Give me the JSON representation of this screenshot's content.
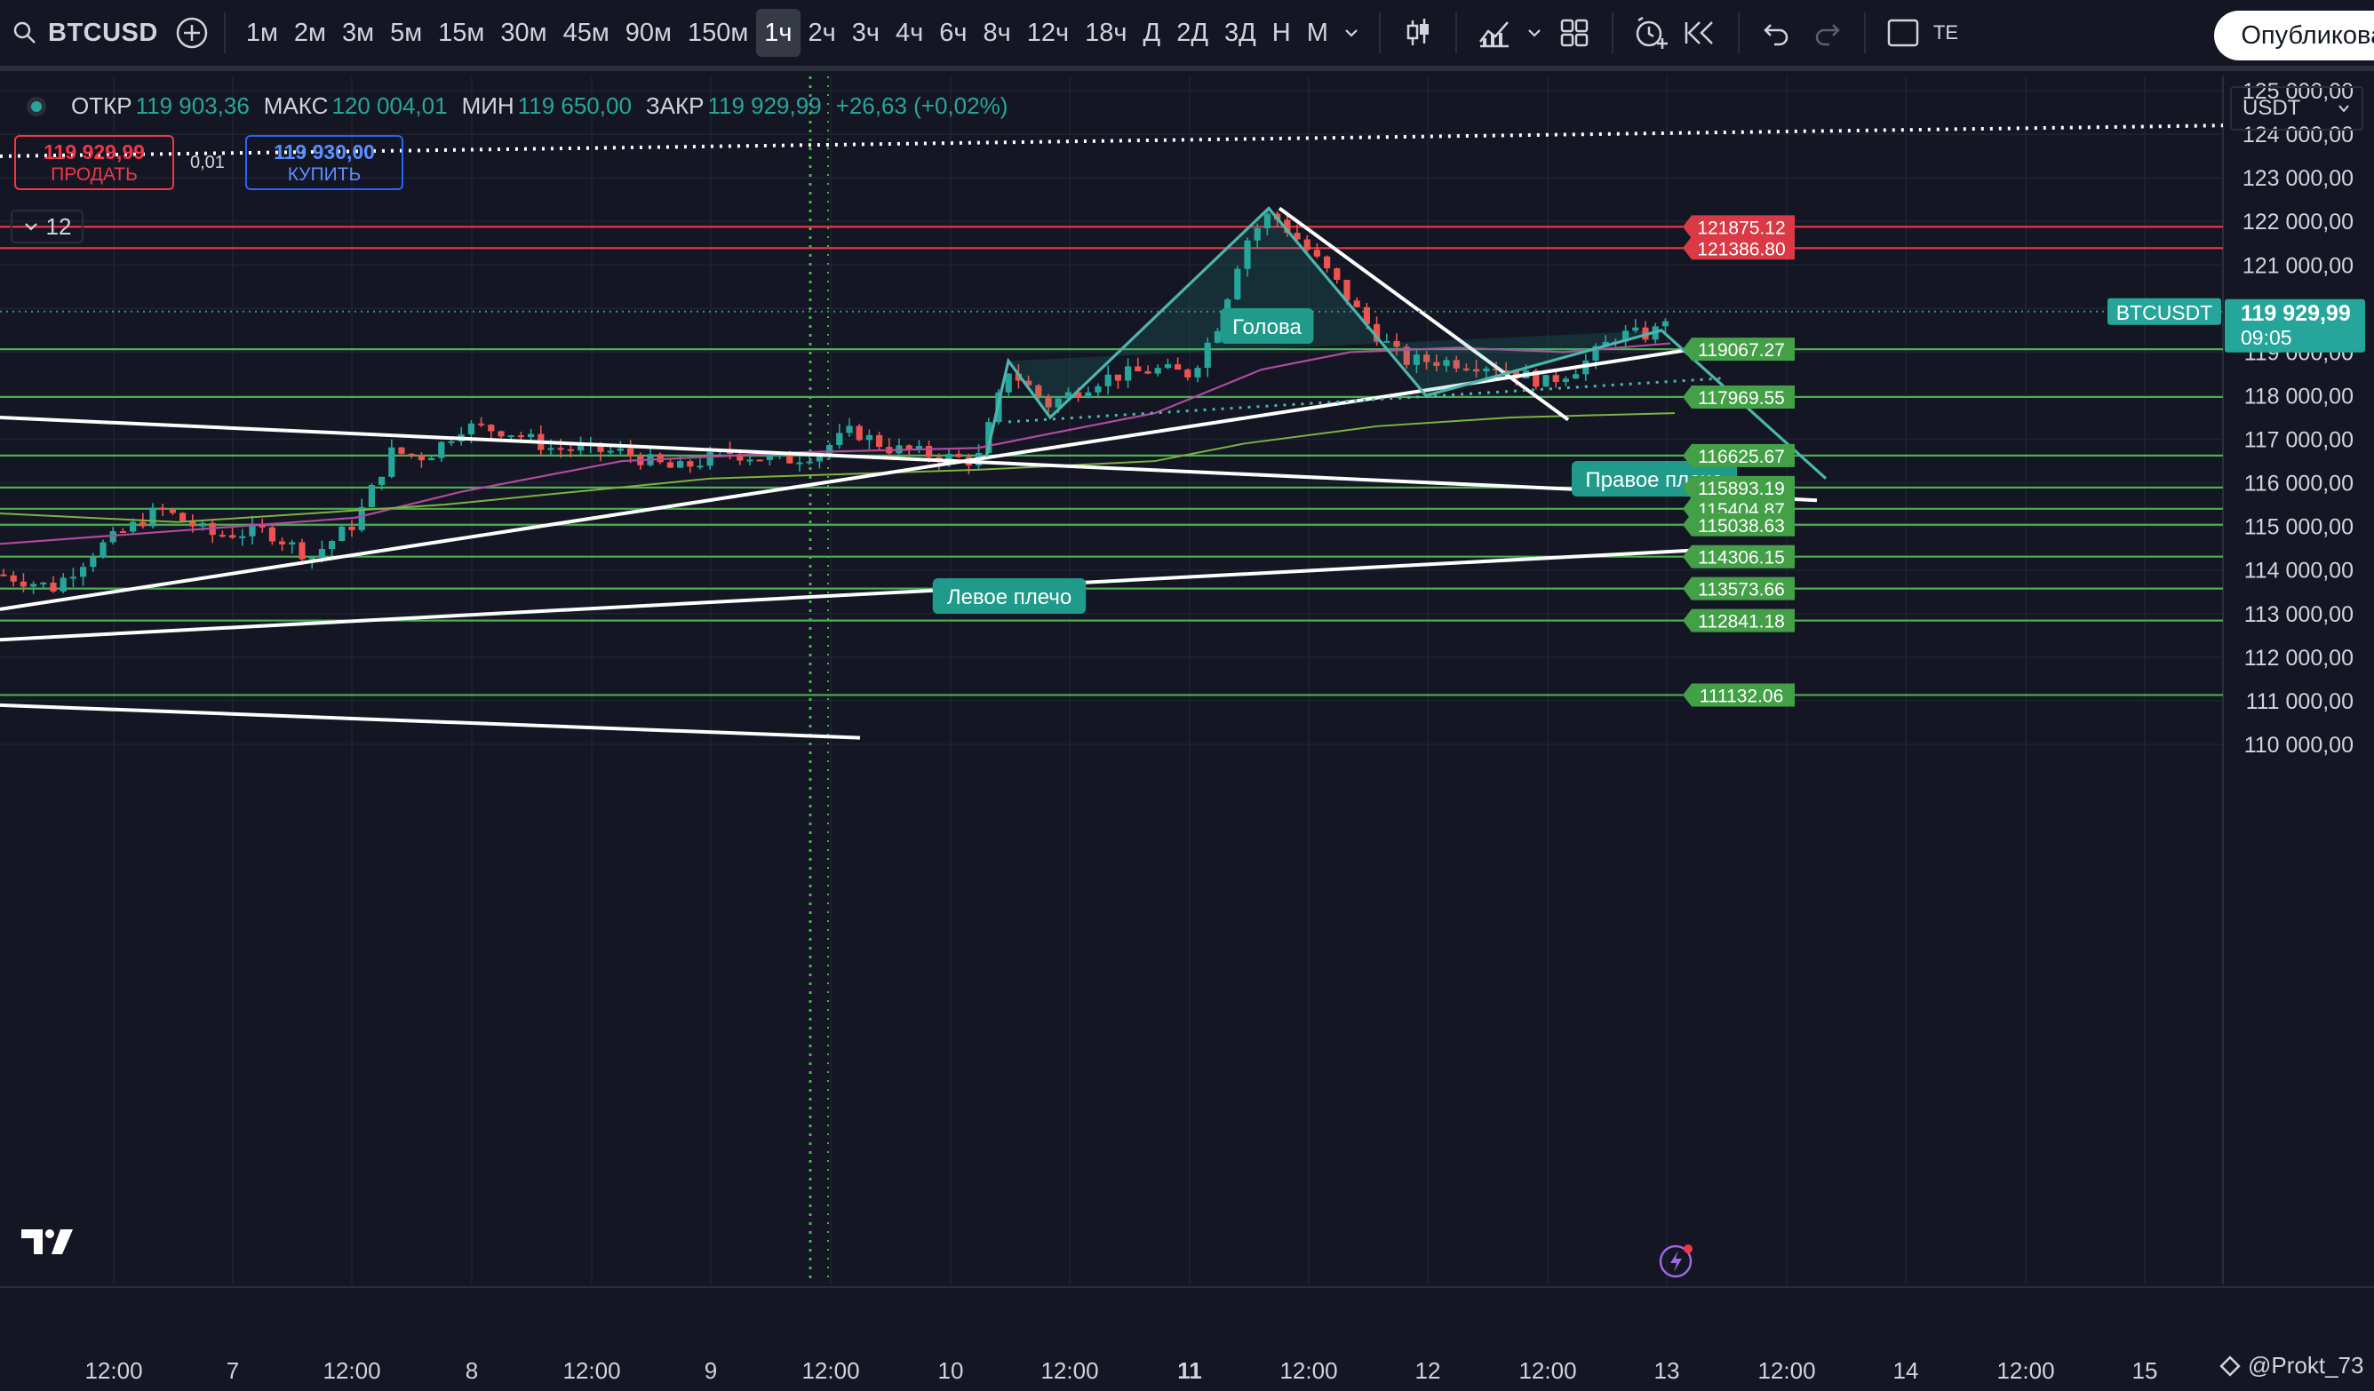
{
  "toolbar": {
    "symbol": "BTCUSD",
    "timeframes": [
      "1м",
      "2м",
      "3м",
      "5м",
      "15м",
      "30м",
      "45м",
      "90м",
      "150м",
      "1ч",
      "2ч",
      "3ч",
      "4ч",
      "6ч",
      "8ч",
      "12ч",
      "18ч",
      "Д",
      "2Д",
      "3Д",
      "Н",
      "М"
    ],
    "active_timeframe": "1ч",
    "extra_label": "ТЕ",
    "publish_label": "Опубликовать",
    "icons": [
      "search-icon",
      "add-symbol-icon",
      "chevron-down-icon",
      "candles-icon",
      "indicators-icon",
      "layout-icon",
      "alert-icon",
      "replay-icon",
      "undo-icon",
      "redo-icon",
      "fullscreen-icon"
    ]
  },
  "legend": {
    "open_label": "ОТКР",
    "open": "119 903,36",
    "high_label": "МАКС",
    "high": "120 004,01",
    "low_label": "МИН",
    "low": "119 650,00",
    "close_label": "ЗАКР",
    "close": "119 929,99",
    "change": "+26,63 (+0,02%)"
  },
  "trade": {
    "sell_price": "119 929,99",
    "sell_label": "ПРОДАТЬ",
    "spread": "0,01",
    "buy_price": "119 930,00",
    "buy_label": "КУПИТЬ"
  },
  "indicators_count": "12",
  "currency": "USDT",
  "price_axis": [
    "125 000,00",
    "124 000,00",
    "123 000,00",
    "122 000,00",
    "121 000,00",
    "119 000,00",
    "118 000,00",
    "117 000,00",
    "116 000,00",
    "115 000,00",
    "114 000,00",
    "113 000,00",
    "112 000,00",
    "111 000,00",
    "110 000,00"
  ],
  "price_axis_values": [
    125000,
    124000,
    123000,
    122000,
    121000,
    119000,
    118000,
    117000,
    116000,
    115000,
    114000,
    113000,
    112000,
    111000,
    110000
  ],
  "current_price": {
    "symbol": "BTCUSDT",
    "price": "119 929,99",
    "countdown": "09:05",
    "value": 119929.99
  },
  "level_lines": [
    {
      "label": "121875.12",
      "value": 121875.12,
      "color": "#f23645"
    },
    {
      "label": "121386.80",
      "value": 121386.8,
      "color": "#f23645"
    },
    {
      "label": "119067.27",
      "value": 119067.27,
      "color": "#4caf50"
    },
    {
      "label": "117969.55",
      "value": 117969.55,
      "color": "#4caf50"
    },
    {
      "label": "116625.67",
      "value": 116625.67,
      "color": "#4caf50"
    },
    {
      "label": "115893.19",
      "value": 115893.19,
      "color": "#4caf50"
    },
    {
      "label": "115404.87",
      "value": 115404.87,
      "color": "#4caf50"
    },
    {
      "label": "115038.63",
      "value": 115038.63,
      "color": "#4caf50"
    },
    {
      "label": "114306.15",
      "value": 114306.15,
      "color": "#4caf50"
    },
    {
      "label": "113573.66",
      "value": 113573.66,
      "color": "#4caf50"
    },
    {
      "label": "112841.18",
      "value": 112841.18,
      "color": "#4caf50"
    },
    {
      "label": "111132.06",
      "value": 111132.06,
      "color": "#4caf50"
    }
  ],
  "pattern_labels": {
    "left": "Левое плечо",
    "head": "Голова",
    "right": "Правое плечо"
  },
  "time_axis": [
    {
      "label": "12:00",
      "bold": false
    },
    {
      "label": "7",
      "bold": false
    },
    {
      "label": "12:00",
      "bold": false
    },
    {
      "label": "8",
      "bold": false
    },
    {
      "label": "12:00",
      "bold": false
    },
    {
      "label": "9",
      "bold": false
    },
    {
      "label": "12:00",
      "bold": false
    },
    {
      "label": "10",
      "bold": false
    },
    {
      "label": "12:00",
      "bold": false
    },
    {
      "label": "11",
      "bold": true
    },
    {
      "label": "12:00",
      "bold": false
    },
    {
      "label": "12",
      "bold": false
    },
    {
      "label": "12:00",
      "bold": false
    },
    {
      "label": "13",
      "bold": false
    },
    {
      "label": "12:00",
      "bold": false
    },
    {
      "label": "14",
      "bold": false
    },
    {
      "label": "12:00",
      "bold": false
    },
    {
      "label": "15",
      "bold": false
    }
  ],
  "watermark": "@Prokt_73",
  "colors": {
    "up": "#26a69a",
    "down": "#ef5350",
    "bg": "#141723",
    "pattern": "#4db6ac"
  }
}
